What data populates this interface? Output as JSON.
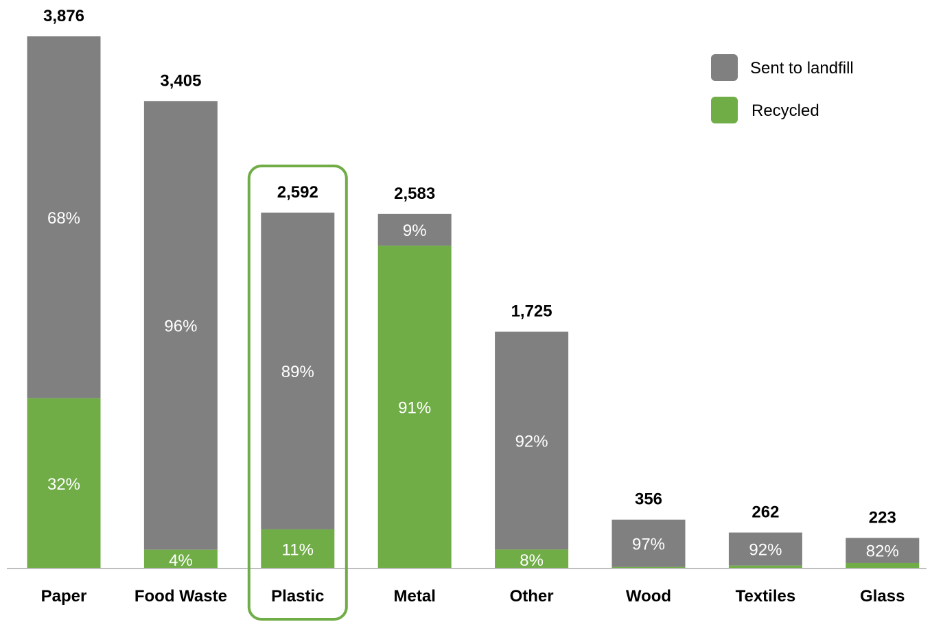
{
  "chart_data": {
    "type": "bar",
    "stacked": true,
    "categories": [
      "Paper",
      "Food Waste",
      "Plastic",
      "Metal",
      "Other",
      "Wood",
      "Textiles",
      "Glass"
    ],
    "totals": [
      3876,
      3405,
      2592,
      2583,
      1725,
      356,
      262,
      223
    ],
    "total_labels": [
      "3,876",
      "3,405",
      "2,592",
      "2,583",
      "1,725",
      "356",
      "262",
      "223"
    ],
    "series": [
      {
        "name": "Recycled",
        "color": "#70AD47",
        "percent": [
          32,
          4,
          11,
          91,
          8,
          3,
          8,
          18
        ],
        "labels": [
          "32%",
          "4%",
          "11%",
          "91%",
          "8%",
          "",
          "",
          ""
        ]
      },
      {
        "name": "Sent to landfill",
        "color": "#808080",
        "percent": [
          68,
          96,
          89,
          9,
          92,
          97,
          92,
          82
        ],
        "labels": [
          "68%",
          "96%",
          "89%",
          "9%",
          "92%",
          "97%",
          "92%",
          "82%"
        ]
      }
    ],
    "legend": {
      "position": "top-right",
      "items": [
        {
          "name": "Sent to landfill",
          "color": "#808080"
        },
        {
          "name": "Recycled",
          "color": "#70AD47"
        }
      ]
    },
    "highlight": {
      "category": "Plastic",
      "color": "#70AD47"
    },
    "ylim": [
      0,
      3876
    ],
    "grid": false
  }
}
